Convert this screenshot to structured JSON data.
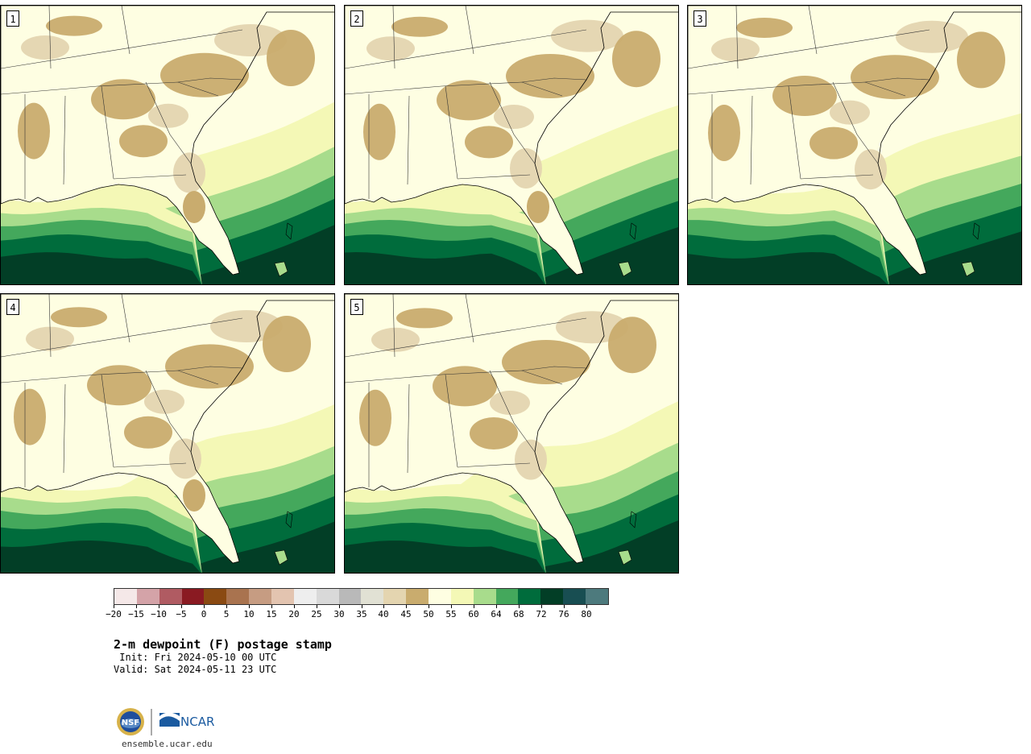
{
  "panels": [
    {
      "label": "1",
      "variant": 0
    },
    {
      "label": "2",
      "variant": 1
    },
    {
      "label": "3",
      "variant": 2
    },
    {
      "label": "4",
      "variant": 3
    },
    {
      "label": "5",
      "variant": 4
    }
  ],
  "colorbar": {
    "colors": [
      "#f5e8e8",
      "#d4a3a8",
      "#b05b62",
      "#8a1a22",
      "#8a4a12",
      "#a9734f",
      "#c69c82",
      "#e3c4b0",
      "#eeeeee",
      "#d9d9d9",
      "#b9b9b9",
      "#e1e1d4",
      "#e4d5b0",
      "#c9ac6e",
      "#fefee2",
      "#f4f8b6",
      "#a8dc8c",
      "#44a85c",
      "#006c3c",
      "#023e26",
      "#184e52",
      "#4d7a7d"
    ],
    "tick_labels": [
      "−20",
      "−15",
      "−10",
      "−5",
      "0",
      "5",
      "10",
      "15",
      "20",
      "25",
      "30",
      "35",
      "40",
      "45",
      "50",
      "55",
      "60",
      "64",
      "68",
      "72",
      "76",
      "80"
    ]
  },
  "title": "2-m dewpoint (F) postage stamp",
  "init": " Init: Fri 2024-05-10 00 UTC",
  "valid": "Valid: Sat 2024-05-11 23 UTC",
  "logos": {
    "nsf_text": "NSF",
    "ncar_text": "NCAR",
    "nsf_icon": "nsf-globe-icon",
    "ncar_icon": "ncar-swoosh-icon"
  },
  "site": "ensemble.ucar.edu",
  "map_colors": {
    "ocean": "#023e26",
    "band_72": "#006c3c",
    "band_68": "#44a85c",
    "band_64": "#a8dc8c",
    "band_60": "#f4f8b6",
    "band_55": "#fefee2",
    "tan": "#c9ac6e",
    "light_tan": "#e4d5b0",
    "borders": "#333333"
  }
}
